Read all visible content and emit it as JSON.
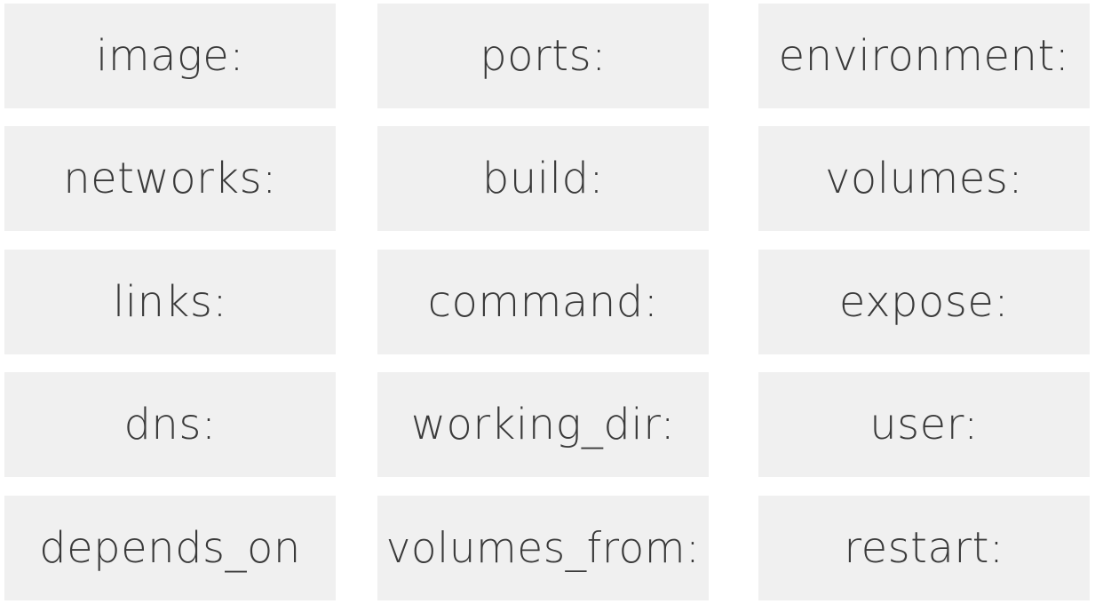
{
  "colors": {
    "tile_background": "#f0f0f0",
    "text": "#3a3a3a",
    "page_background": "#ffffff"
  },
  "tiles": [
    [
      "image:",
      "ports:",
      "environment:"
    ],
    [
      "networks:",
      "build:",
      "volumes:"
    ],
    [
      "links:",
      "command:",
      "expose:"
    ],
    [
      "dns:",
      "working_dir:",
      "user:"
    ],
    [
      "depends_on",
      "volumes_from:",
      "restart:"
    ]
  ]
}
